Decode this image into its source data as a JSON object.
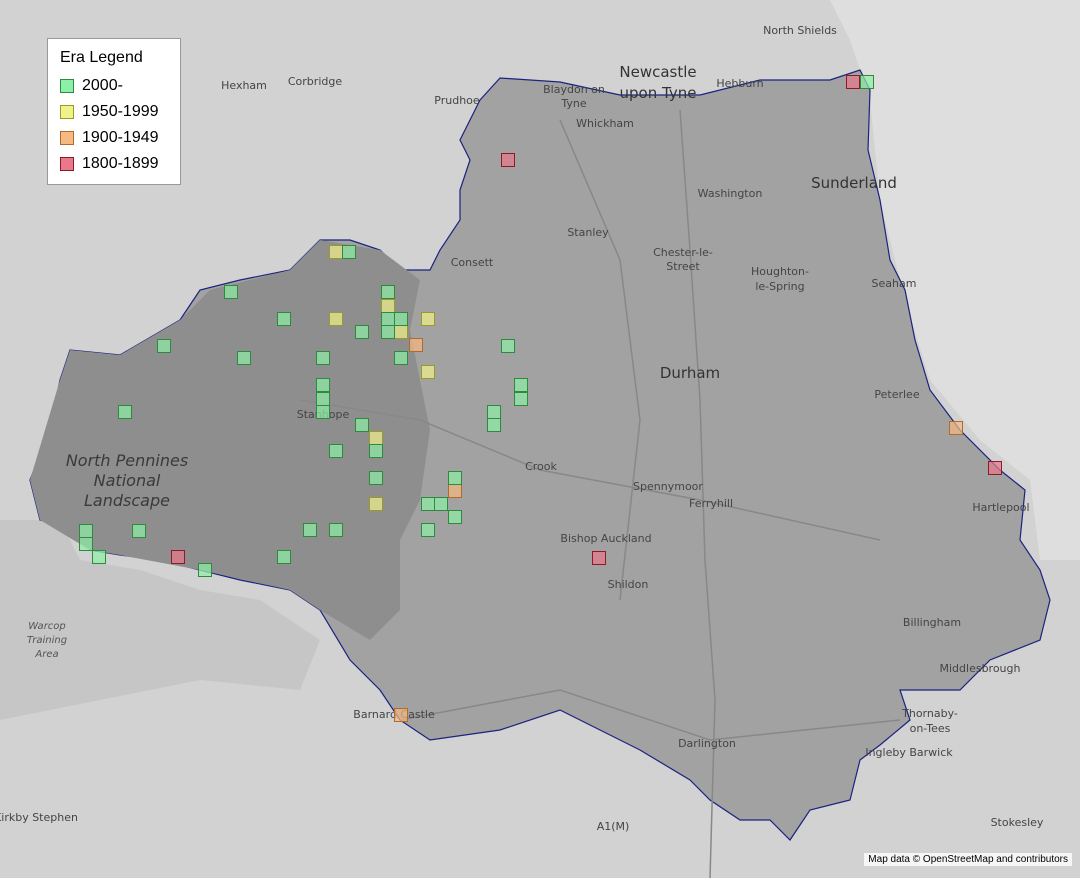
{
  "legend": {
    "title": "Era Legend",
    "items": [
      {
        "label": "2000-",
        "color": "#8ef0a8",
        "stroke": "#2e8b3e"
      },
      {
        "label": "1950-1999",
        "color": "#f2f28a",
        "stroke": "#9a9a2a"
      },
      {
        "label": "1900-1949",
        "color": "#f6b982",
        "stroke": "#b06a2a"
      },
      {
        "label": "1800-1899",
        "color": "#e8788a",
        "stroke": "#8b1a2a"
      }
    ]
  },
  "places": [
    [
      "North Shields"
    ],
    [
      "Hexham"
    ],
    [
      "Corbridge"
    ],
    [
      "Prudhoe"
    ],
    [
      "Blaydon on",
      "Tyne"
    ],
    [
      "Newcastle",
      "upon Tyne"
    ],
    [
      "Hebburn"
    ],
    [
      "Whickham"
    ],
    [
      "Sunderland"
    ],
    [
      "Washington"
    ],
    [
      "Stanley"
    ],
    [
      "Chester-le-",
      "Street"
    ],
    [
      "Consett"
    ],
    [
      "Houghton-",
      "le-Spring"
    ],
    [
      "Seaham"
    ],
    [
      "Durham"
    ],
    [
      "Peterlee"
    ],
    [
      "Stanhope"
    ],
    [
      "North Pennines",
      "National",
      "Landscape"
    ],
    [
      "Crook"
    ],
    [
      "Spennymoor"
    ],
    [
      "Ferryhill"
    ],
    [
      "Hartlepool"
    ],
    [
      "Bishop Auckland"
    ],
    [
      "Shildon"
    ],
    [
      "Warcop",
      "Training",
      "Area"
    ],
    [
      "Billingham"
    ],
    [
      "Middlesbrough"
    ],
    [
      "Barnard Castle"
    ],
    [
      "Thornaby-",
      "on-Tees"
    ],
    [
      "Darlington"
    ],
    [
      "Ingleby Barwick"
    ],
    [
      "Kirkby Stephen"
    ],
    [
      "A1(M)"
    ],
    [
      "Stokesley"
    ]
  ],
  "attribution": "Map data © OpenStreetMap and contributors"
}
